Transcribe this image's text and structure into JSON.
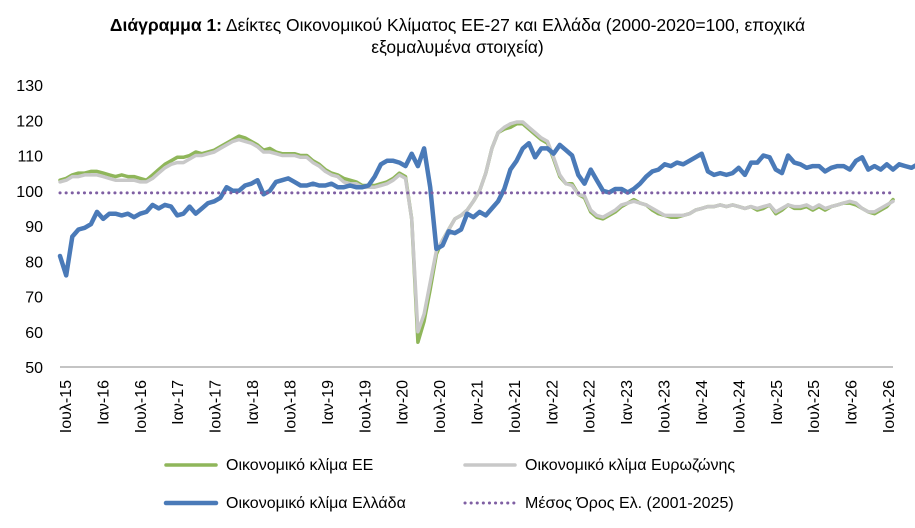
{
  "title": {
    "bold": "Διάγραμμα 1:",
    "line1": " Δείκτες Οικονομικού Κλίματος ΕΕ-27 και Ελλάδα (2000-2020=100, εποχικά",
    "line2": "εξομαλυμένα στοιχεία)"
  },
  "chart_data": {
    "type": "line",
    "ylim": [
      50,
      130
    ],
    "yticks": [
      50,
      60,
      70,
      80,
      90,
      100,
      110,
      120,
      130
    ],
    "xlabels": [
      "Ιουλ-15",
      "Ιαν-16",
      "Ιουλ-16",
      "Ιαν-17",
      "Ιουλ-17",
      "Ιαν-18",
      "Ιουλ-18",
      "Ιαν-19",
      "Ιουλ-19",
      "Ιαν-20",
      "Ιουλ-20",
      "Ιαν-21",
      "Ιουλ-21",
      "Ιαν-22",
      "Ιουλ-22",
      "Ιαν-23",
      "Ιουλ-23",
      "Ιαν-24",
      "Ιουλ-24",
      "Ιαν-25",
      "Ιουλ-25",
      "Ιαν-26",
      "Ιουλ-26"
    ],
    "grid": false,
    "legend_position": "bottom",
    "series": [
      {
        "name": "Οικονομικό κλίμα ΕΕ",
        "color": "#8fb65a",
        "width": 3.5,
        "values": [
          103,
          103.5,
          104.5,
          105,
          105,
          105.5,
          105.5,
          105,
          104.5,
          104,
          104.5,
          104,
          104,
          103.5,
          103,
          104.5,
          106,
          107.5,
          108.5,
          109.5,
          109.5,
          110,
          111,
          110.5,
          111,
          111.5,
          112.5,
          113.5,
          114.5,
          115.5,
          115,
          114,
          113,
          111.5,
          112,
          111,
          110.5,
          110.5,
          110.5,
          110,
          110,
          108.5,
          107.5,
          106,
          105,
          104.5,
          103.5,
          103,
          102.5,
          101.5,
          101.5,
          101.5,
          102,
          102.5,
          103.5,
          105,
          104,
          92,
          57,
          63,
          72,
          82,
          86,
          89,
          92,
          93,
          94.5,
          97,
          100,
          105,
          112,
          116.5,
          117.5,
          118,
          119,
          119,
          117.5,
          116,
          114.5,
          113.5,
          109,
          104,
          102,
          102,
          99,
          98,
          94,
          92.5,
          92,
          93,
          94,
          95.5,
          96.5,
          97.5,
          96.5,
          96,
          94.5,
          93.5,
          93,
          92.5,
          92.5,
          93,
          93.5,
          94.5,
          95,
          95.5,
          95.5,
          96,
          95.5,
          96,
          95.5,
          95,
          95.5,
          94.5,
          95,
          96,
          93.5,
          94.5,
          96,
          95,
          95,
          95.5,
          94.5,
          95.5,
          94.5,
          95.5,
          96,
          96.5,
          96.5,
          96,
          95,
          94,
          93.5,
          94.5,
          95.5,
          97.5
        ]
      },
      {
        "name": "Οικονομικό κλίμα Ευρωζώνης",
        "color": "#c8c8c8",
        "width": 3.5,
        "values": [
          102.5,
          103,
          104,
          104,
          104.5,
          104.5,
          104.5,
          104,
          103.5,
          103,
          103,
          103,
          103,
          102.5,
          102.5,
          103.5,
          105,
          106.5,
          107.5,
          108,
          108,
          109,
          110,
          110,
          110.5,
          111,
          112,
          113,
          114,
          114.5,
          114,
          113.5,
          112.5,
          111,
          111,
          110.5,
          110,
          110,
          110,
          109.5,
          109.5,
          108,
          107,
          105.5,
          104.5,
          104,
          102.5,
          102,
          102,
          101,
          101,
          101,
          101.5,
          102,
          103,
          104.5,
          103.5,
          92,
          60,
          65,
          74,
          83,
          86,
          89,
          92,
          93,
          94.5,
          97,
          100,
          105,
          112,
          116.5,
          118,
          119,
          119.5,
          119.5,
          118,
          116.5,
          115,
          114,
          109.5,
          104.5,
          102,
          101.5,
          99,
          98.5,
          94.5,
          93,
          92.5,
          93.5,
          94.5,
          96,
          96.5,
          97,
          96.5,
          96,
          95,
          94,
          93,
          93,
          93,
          93,
          93.5,
          94.5,
          95,
          95.5,
          95.5,
          96,
          95.5,
          96,
          95.5,
          95,
          95.5,
          95,
          95.5,
          96,
          94,
          95,
          96,
          95.5,
          95.5,
          96,
          95,
          96,
          95,
          95.5,
          96,
          96.5,
          97,
          96.5,
          95,
          94,
          94,
          95,
          96,
          97
        ]
      },
      {
        "name": "Οικονομικό κλίμα Ελλάδα",
        "color": "#4a7ab8",
        "width": 4.5,
        "values": [
          81.5,
          76,
          87,
          89,
          89.5,
          90.5,
          94,
          92,
          93.5,
          93.5,
          93,
          93.5,
          92.5,
          93.5,
          94,
          96,
          95,
          96,
          95.5,
          93,
          93.5,
          95.5,
          93.5,
          95,
          96.5,
          97,
          98,
          101,
          100,
          100,
          101.5,
          102,
          103,
          99,
          100,
          102.5,
          103,
          103.5,
          102.5,
          101.5,
          101.5,
          102,
          101.5,
          101.5,
          102,
          101,
          101,
          101.5,
          101,
          101,
          101.5,
          104,
          107.5,
          108.5,
          108.5,
          108,
          107,
          110.5,
          107,
          112,
          101,
          83.5,
          84.5,
          88.5,
          88,
          89,
          93.5,
          92.5,
          94,
          93,
          95,
          97,
          100.5,
          106,
          108.5,
          112,
          113.5,
          109.5,
          112,
          112,
          110.5,
          113,
          111.5,
          110,
          104.5,
          102,
          106,
          103,
          100,
          99.5,
          100.5,
          100.5,
          99.5,
          100.5,
          102,
          104,
          105.5,
          106,
          107.5,
          107,
          108,
          107.5,
          108.5,
          109.5,
          110.5,
          105.5,
          104.5,
          105,
          104.5,
          105,
          106.5,
          104.5,
          108,
          108,
          110,
          109.5,
          106,
          105,
          110,
          108,
          107.5,
          106.5,
          107,
          107,
          105.5,
          106.5,
          107,
          107,
          106,
          108.5,
          109.5,
          106,
          107,
          106,
          107.5,
          106,
          107.5,
          107,
          106.5,
          107.5,
          108,
          107.5
        ]
      },
      {
        "name": "Μέσος Όρος Ελ. (2001-2025)",
        "color": "#7f5fa3",
        "style": "dotted",
        "values": [
          99.4
        ]
      }
    ]
  }
}
